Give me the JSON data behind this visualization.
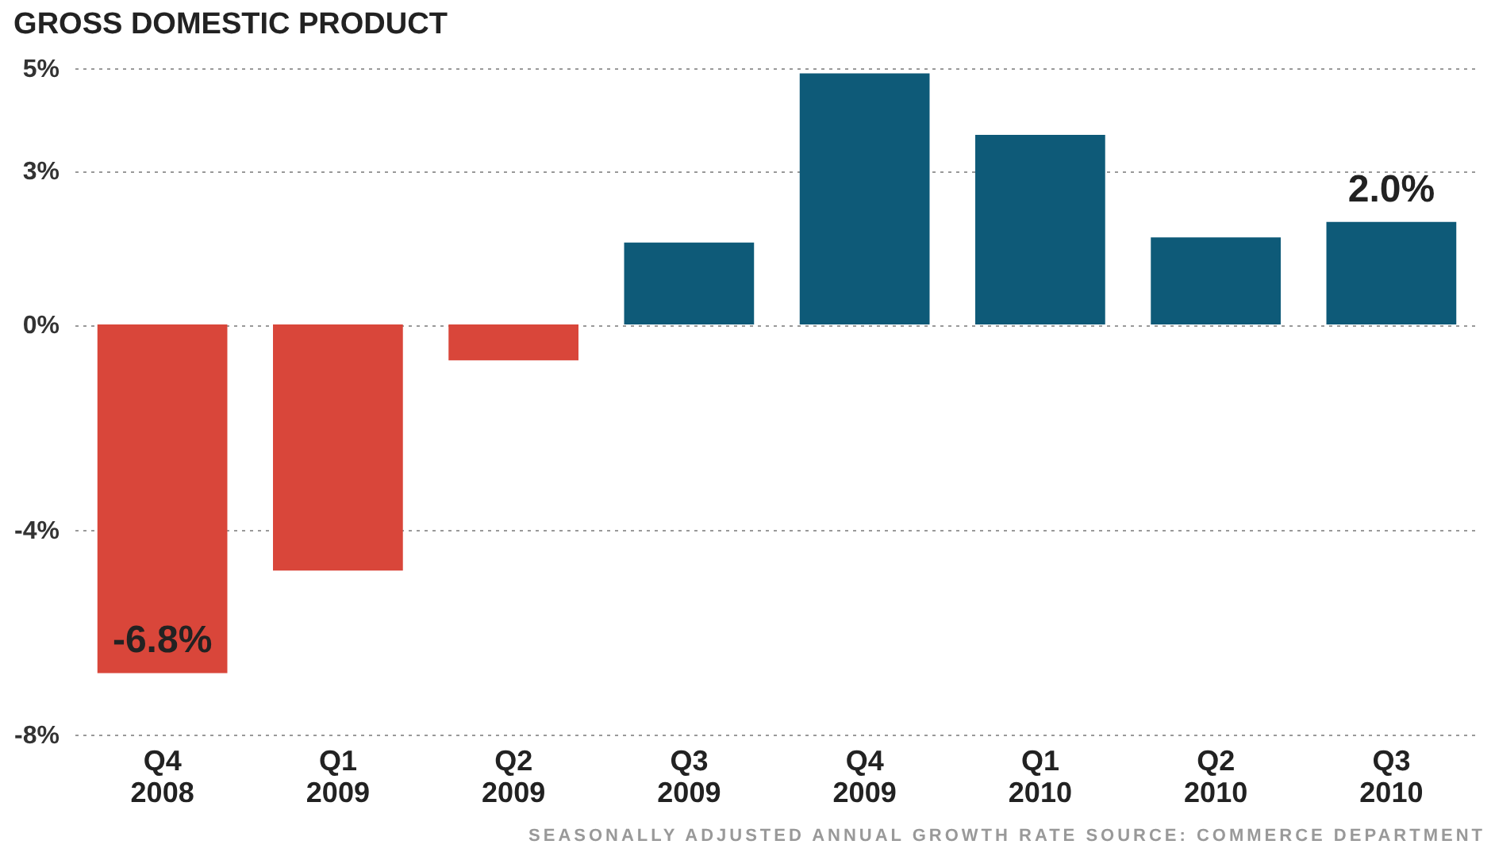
{
  "chart_data": {
    "type": "bar",
    "title": "GROSS DOMESTIC PRODUCT",
    "categories": [
      "Q4 2008",
      "Q1 2009",
      "Q2 2009",
      "Q3 2009",
      "Q4 2009",
      "Q1 2010",
      "Q2 2010",
      "Q3 2010"
    ],
    "values": [
      -6.8,
      -4.8,
      -0.7,
      1.6,
      4.9,
      3.7,
      1.7,
      2.0
    ],
    "colors": [
      "#d9463a",
      "#d9463a",
      "#d9463a",
      "#0e5a78",
      "#0e5a78",
      "#0e5a78",
      "#0e5a78",
      "#0e5a78"
    ],
    "value_labels": [
      "-6.8%",
      null,
      null,
      null,
      null,
      null,
      null,
      "2.0%"
    ],
    "ylim": [
      -8,
      5
    ],
    "yticks": [
      {
        "value": -8,
        "label": "-8%"
      },
      {
        "value": -4,
        "label": "-4%"
      },
      {
        "value": 0,
        "label": "0%"
      },
      {
        "value": 3,
        "label": "3%"
      },
      {
        "value": 5,
        "label": "5%"
      }
    ],
    "grid": "y",
    "annotations": [
      "SEASONALLY ADJUSTED ANNUAL GROWTH RATE SOURCE: COMMERCE DEPARTMENT"
    ]
  }
}
